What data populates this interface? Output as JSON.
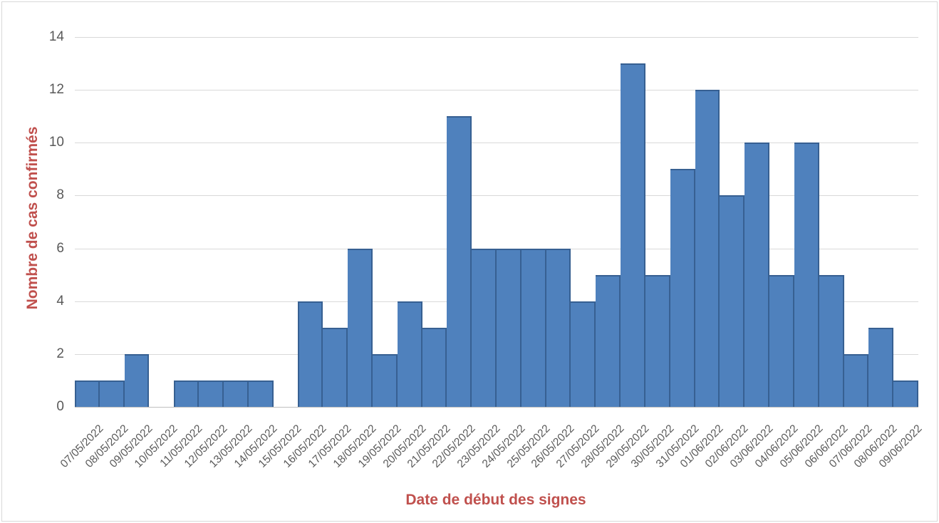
{
  "chart_data": {
    "type": "bar",
    "title": "",
    "xlabel": "Date de début des signes",
    "ylabel": "Nombre de cas confirmés",
    "categories": [
      "07/05/2022",
      "08/05/2022",
      "09/05/2022",
      "10/05/2022",
      "11/05/2022",
      "12/05/2022",
      "13/05/2022",
      "14/05/2022",
      "15/05/2022",
      "16/05/2022",
      "17/05/2022",
      "18/05/2022",
      "19/05/2022",
      "20/05/2022",
      "21/05/2022",
      "22/05/2022",
      "23/05/2022",
      "24/05/2022",
      "25/05/2022",
      "26/05/2022",
      "27/05/2022",
      "28/05/2022",
      "29/05/2022",
      "30/05/2022",
      "31/05/2022",
      "01/06/2022",
      "02/06/2022",
      "03/06/2022",
      "04/06/2022",
      "05/06/2022",
      "06/06/2022",
      "07/06/2022",
      "08/06/2022",
      "09/06/2022"
    ],
    "values": [
      1,
      1,
      2,
      0,
      1,
      1,
      1,
      1,
      0,
      4,
      3,
      6,
      2,
      4,
      3,
      11,
      6,
      6,
      6,
      6,
      4,
      5,
      13,
      5,
      9,
      12,
      8,
      10,
      5,
      10,
      5,
      2,
      3,
      1
    ],
    "ylim": [
      0,
      14
    ],
    "yticks": [
      0,
      2,
      4,
      6,
      8,
      10,
      12,
      14
    ],
    "grid": "horizontal",
    "legend": "none",
    "bar_gap": 0,
    "colors": {
      "bar_fill": "#4f81bd",
      "bar_border": "#376092",
      "gridline": "#d9d9d9",
      "axis_line": "#bfbfbf",
      "tick_label": "#595959",
      "axis_title": "#c0504d",
      "background": "#ffffff",
      "chart_border": "#d9d9d9"
    }
  }
}
